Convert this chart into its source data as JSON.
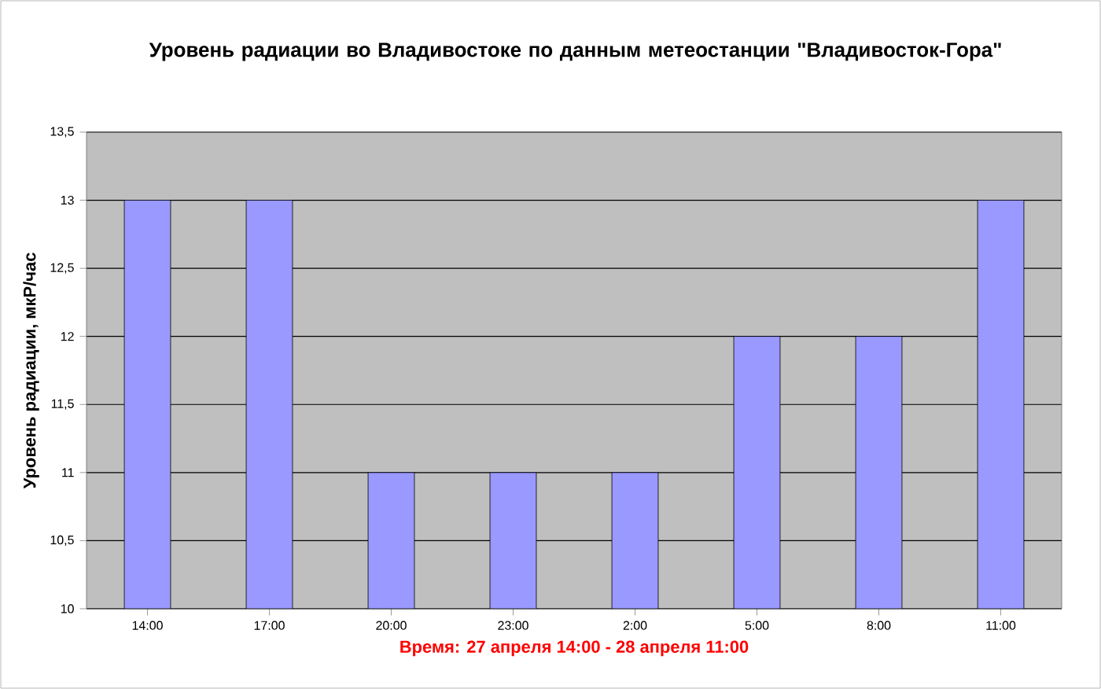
{
  "chart_data": {
    "type": "bar",
    "title": "Уровень радиации во Владивостоке по данным метеостанции \"Владивосток-Гора\"",
    "xlabel": "Время: 27 апреля 14:00 - 28 апреля 11:00",
    "ylabel": "Уровень радиации, мкР/час",
    "categories": [
      "14:00",
      "17:00",
      "20:00",
      "23:00",
      "2:00",
      "5:00",
      "8:00",
      "11:00"
    ],
    "values": [
      13,
      13,
      11,
      11,
      11,
      12,
      12,
      13
    ],
    "color": "#9999ff",
    "ylim": [
      10,
      13.5
    ],
    "yticks": [
      10,
      {
        "value": 10.5,
        "label": "10,5"
      },
      11,
      {
        "value": 11.5,
        "label": "11,5"
      },
      12,
      {
        "value": 12.5,
        "label": "12,5"
      },
      13,
      {
        "value": 13.5,
        "label": "13,5"
      }
    ],
    "grid": "y"
  }
}
